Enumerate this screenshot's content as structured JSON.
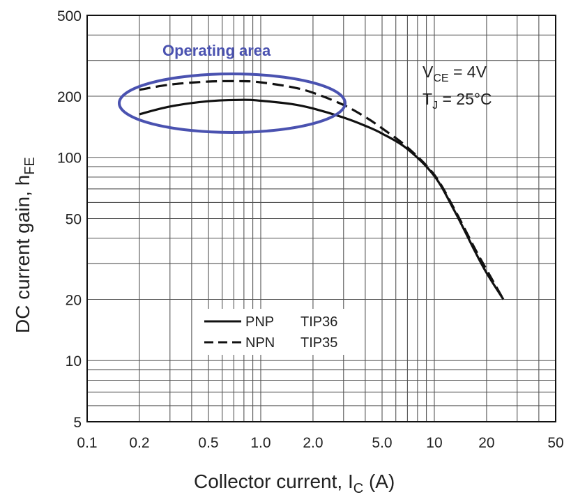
{
  "chart_data": {
    "type": "line",
    "title": "",
    "xlabel": "Collector current, I",
    "xlabel_sub": "C",
    "xlabel_unit": " (A)",
    "ylabel": "DC current gain, h",
    "ylabel_sub": "FE",
    "x_scale": "log",
    "y_scale": "log",
    "xlim": [
      0.1,
      50
    ],
    "ylim": [
      5,
      500
    ],
    "x_ticks": [
      0.1,
      0.2,
      0.5,
      1.0,
      2.0,
      5.0,
      10,
      20,
      50
    ],
    "x_tick_labels": [
      "0.1",
      "0.2",
      "0.5",
      "1.0",
      "2.0",
      "5.0",
      "10",
      "20",
      "50"
    ],
    "y_ticks": [
      5,
      10,
      20,
      50,
      100,
      200,
      500
    ],
    "y_tick_labels": [
      "5",
      "10",
      "20",
      "50",
      "100",
      "200",
      "500"
    ],
    "grid": true,
    "conditions": {
      "vce_main": "V",
      "vce_sub": "CE",
      "vce_value": " = 4V",
      "tj_main": "T",
      "tj_sub": "J",
      "tj_value": " = 25°C"
    },
    "operating_area_label": "Operating area",
    "operating_area_color": "#4a52b0",
    "legend_position": "lower-center",
    "series": [
      {
        "name": "PNP",
        "device": "TIP36",
        "style": "solid",
        "color": "#111111",
        "x": [
          0.2,
          0.3,
          0.5,
          0.8,
          1.0,
          1.5,
          2.0,
          3.0,
          4.0,
          5.0,
          7.0,
          10,
          13,
          17,
          20,
          25
        ],
        "y": [
          163,
          178,
          189,
          192,
          190,
          183,
          174,
          157,
          143,
          131,
          110,
          81,
          55,
          35,
          27,
          20
        ]
      },
      {
        "name": "NPN",
        "device": "TIP35",
        "style": "dashed",
        "color": "#111111",
        "x": [
          0.2,
          0.3,
          0.5,
          0.8,
          1.0,
          1.5,
          2.0,
          3.0,
          4.0,
          5.0,
          7.0,
          10,
          13,
          17,
          20,
          25
        ],
        "y": [
          215,
          228,
          236,
          237,
          234,
          222,
          208,
          181,
          158,
          139,
          112,
          82,
          56,
          36,
          28,
          20
        ]
      }
    ]
  }
}
